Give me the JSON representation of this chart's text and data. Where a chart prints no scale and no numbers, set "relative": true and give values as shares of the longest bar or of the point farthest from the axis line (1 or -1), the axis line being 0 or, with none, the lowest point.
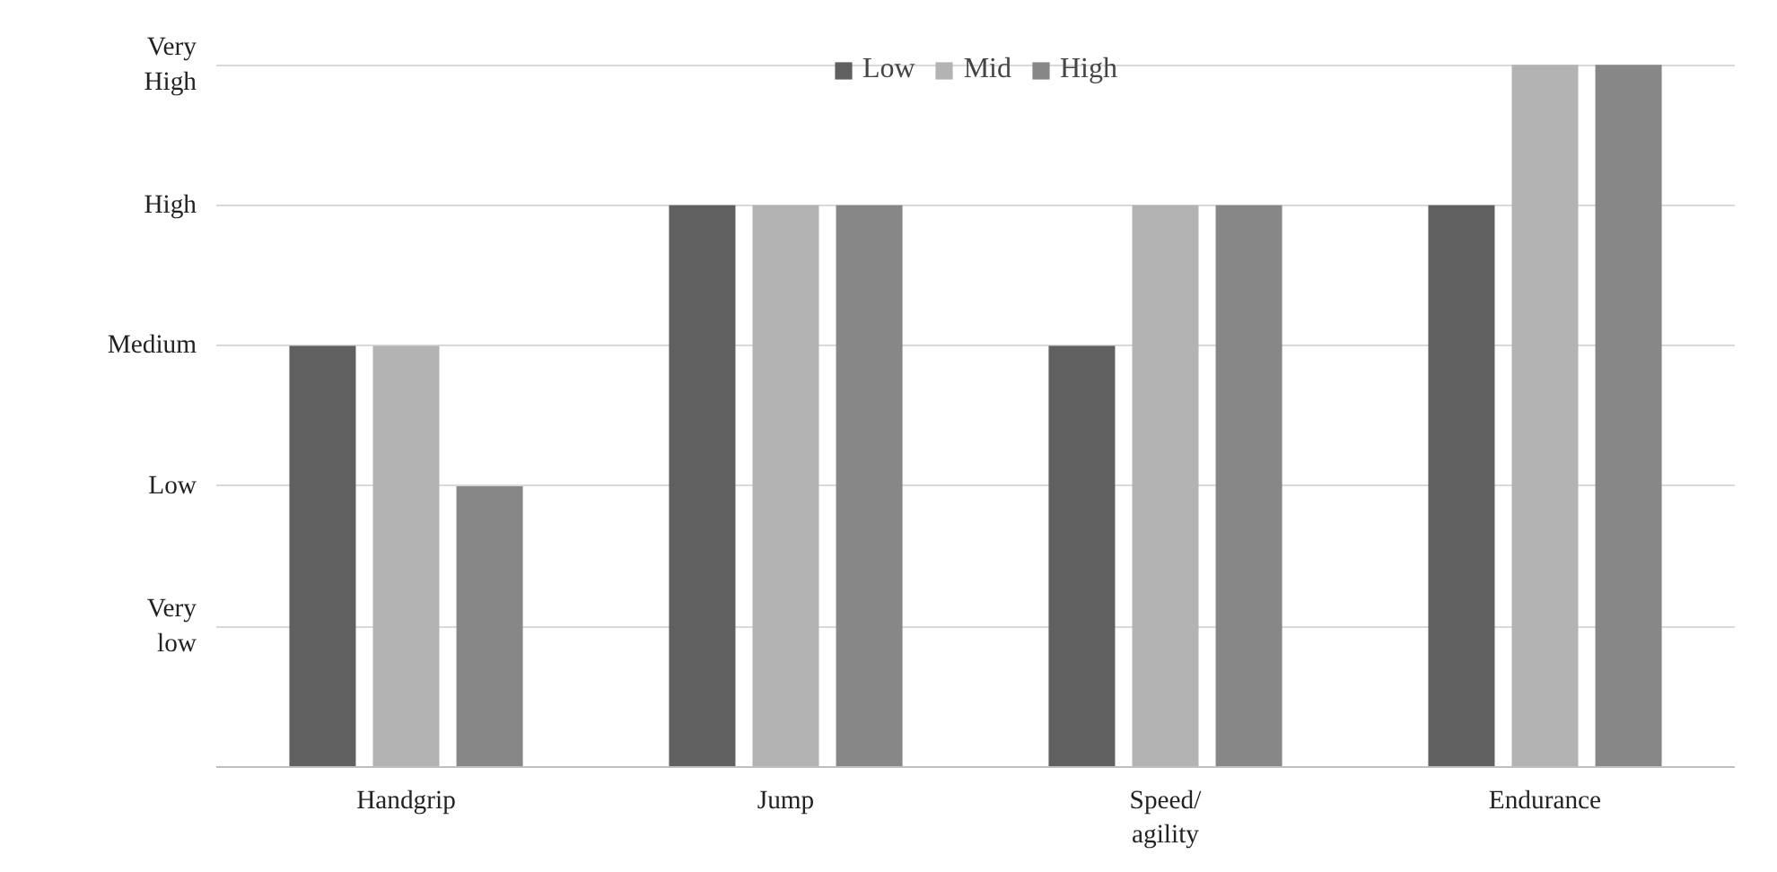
{
  "chart_data": {
    "type": "bar",
    "relative": true,
    "categories": [
      "Handgrip",
      "Jump",
      "Speed/\nagility",
      "Endurance"
    ],
    "series": [
      {
        "name": "Low",
        "color": "#606060",
        "values": [
          0.6,
          0.8,
          0.6,
          0.8
        ]
      },
      {
        "name": "Mid",
        "color": "#b3b3b3",
        "values": [
          0.6,
          0.8,
          0.8,
          1
        ]
      },
      {
        "name": "High",
        "color": "#878787",
        "values": [
          0.4,
          0.8,
          0.8,
          1
        ]
      }
    ],
    "annotations": [
      "Very\nlow",
      "Low",
      "Medium",
      "High",
      "Very\nHigh"
    ],
    "grid": "y",
    "legend": "top"
  }
}
